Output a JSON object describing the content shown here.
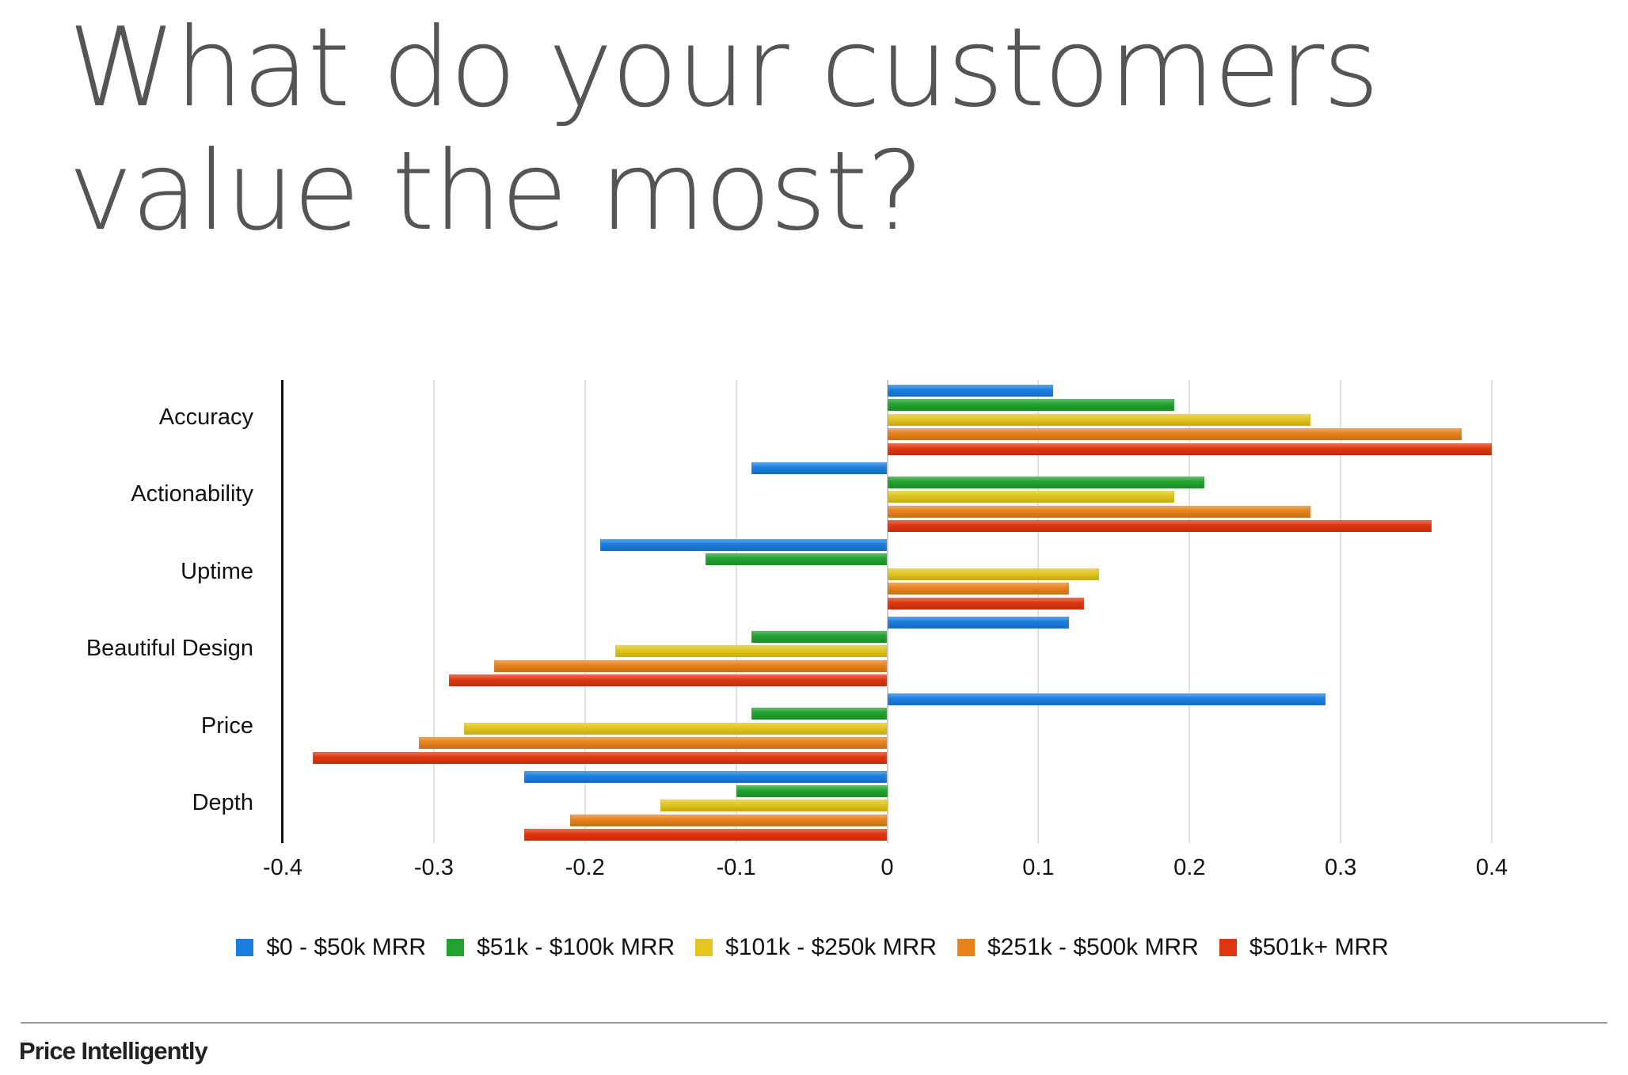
{
  "title_lines": [
    "What do your customers",
    "value the most?"
  ],
  "footer": "Price Intelligently",
  "chart_data": {
    "type": "bar",
    "orientation": "horizontal",
    "title": "What do your customers value the most?",
    "categories": [
      "Accuracy",
      "Actionability",
      "Uptime",
      "Beautiful Design",
      "Price",
      "Depth"
    ],
    "series": [
      {
        "name": "$0 - $50k MRR",
        "color": "#1a7ee0",
        "values": [
          0.11,
          -0.09,
          -0.19,
          0.12,
          0.29,
          -0.24
        ]
      },
      {
        "name": "$51k - $100k MRR",
        "color": "#21a22e",
        "values": [
          0.19,
          0.21,
          -0.12,
          -0.09,
          -0.09,
          -0.1
        ]
      },
      {
        "name": "$101k - $250k MRR",
        "color": "#e3c51e",
        "values": [
          0.28,
          0.19,
          0.14,
          -0.18,
          -0.28,
          -0.15
        ]
      },
      {
        "name": "$251k - $500k MRR",
        "color": "#e8821a",
        "values": [
          0.38,
          0.28,
          0.12,
          -0.26,
          -0.31,
          -0.21
        ]
      },
      {
        "name": "$501k+ MRR",
        "color": "#e0360f",
        "values": [
          0.4,
          0.36,
          0.13,
          -0.29,
          -0.38,
          -0.24
        ]
      }
    ],
    "xlim": [
      -0.4,
      0.4
    ],
    "xticks": [
      "-0.4",
      "-0.3",
      "-0.2",
      "-0.1",
      "0",
      "0.1",
      "0.2",
      "0.3",
      "0.4"
    ],
    "xlabel": "",
    "ylabel": "",
    "grid": true,
    "legend": "bottom"
  }
}
